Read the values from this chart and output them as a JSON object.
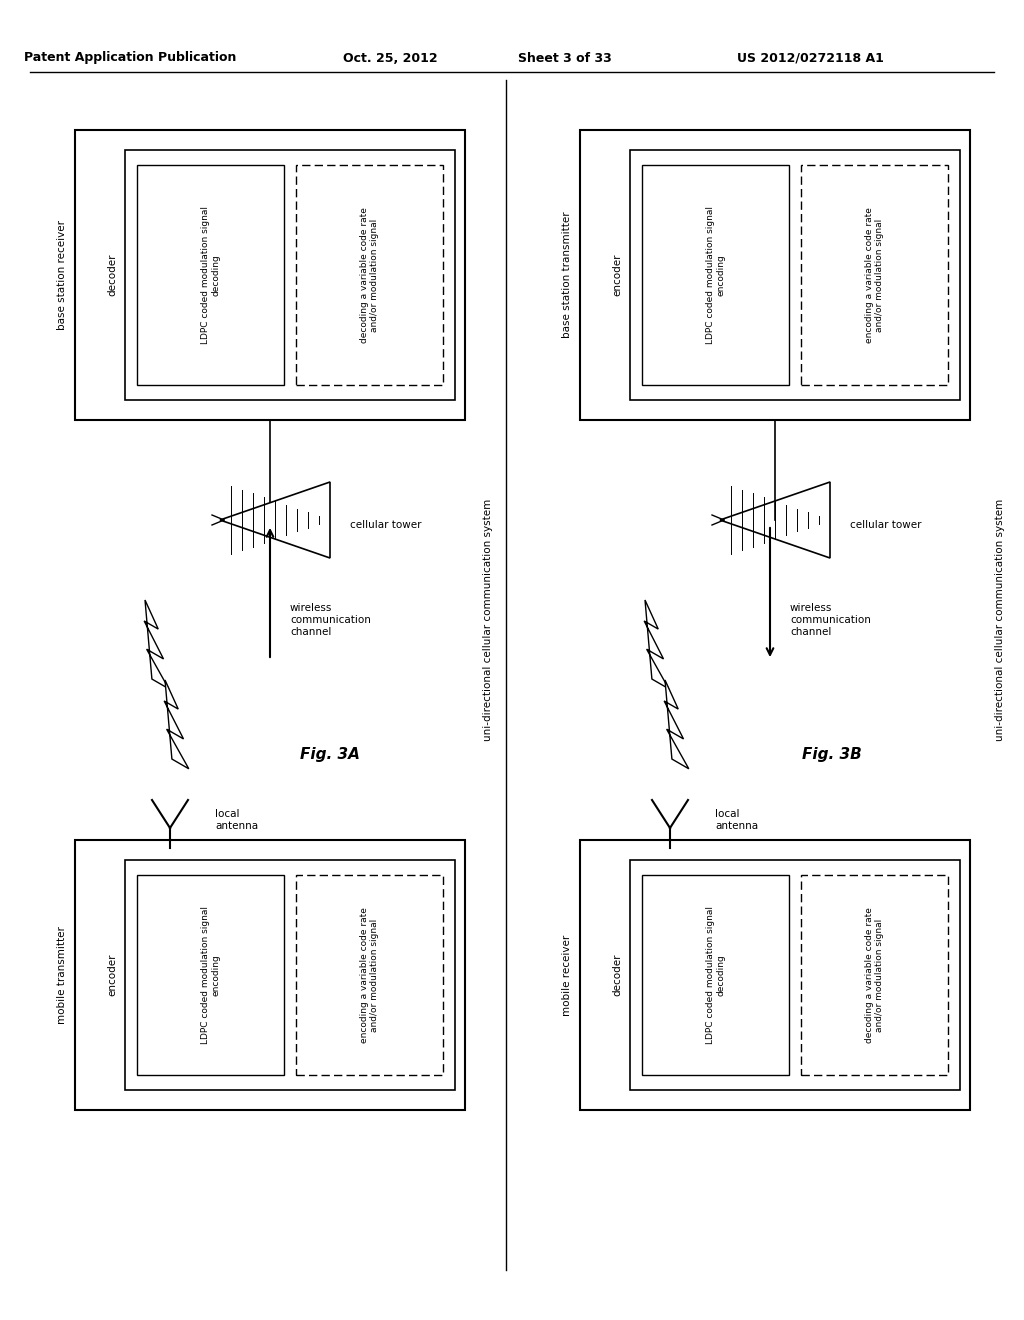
{
  "bg_color": "#ffffff",
  "header_text": "Patent Application Publication",
  "header_date": "Oct. 25, 2012",
  "header_sheet": "Sheet 3 of 33",
  "header_patent": "US 2012/0272118 A1",
  "fig3a_label": "Fig. 3A",
  "fig3b_label": "Fig. 3B",
  "fig3a_system_label": "uni-directional cellular communication system",
  "fig3b_system_label": "uni-directional cellular communication system",
  "top_left_outer_label": "base station receiver",
  "top_left_inner_label": "decoder",
  "top_left_box1_text": "LDPC coded modulation signal\ndecoding",
  "top_left_box2_text": "decoding a variable code rate\nand/or modulation signal",
  "bottom_left_outer_label": "mobile transmitter",
  "bottom_left_inner_label": "encoder",
  "bottom_left_box1_text": "LDPC coded modulation signal\nencoding",
  "bottom_left_box2_text": "encoding a variable code rate\nand/or modulation signal",
  "top_right_outer_label": "base station transmitter",
  "top_right_inner_label": "encoder",
  "top_right_box1_text": "LDPC coded modulation signal\nencoding",
  "top_right_box2_text": "encoding a variable code rate\nand/or modulation signal",
  "bottom_right_outer_label": "mobile receiver",
  "bottom_right_inner_label": "decoder",
  "bottom_right_box1_text": "LDPC coded modulation signal\ndecoding",
  "bottom_right_box2_text": "decoding a variable code rate\nand/or modulation signal",
  "cellular_tower_label": "cellular tower",
  "local_antenna_label": "local\nantenna",
  "wireless_label": "wireless\ncommunication\nchannel"
}
